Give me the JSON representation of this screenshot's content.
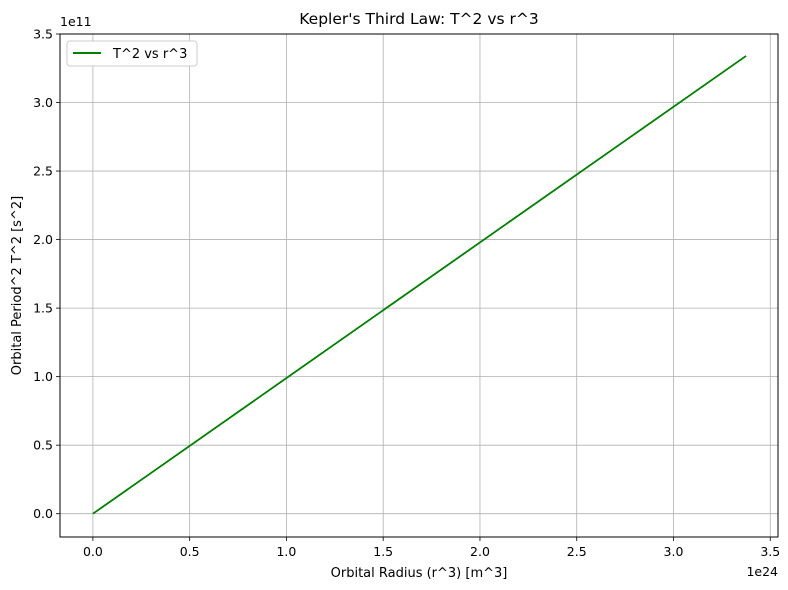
{
  "chart_data": {
    "type": "line",
    "title": "Kepler's Third Law: T^2 vs r^3",
    "xlabel": "Orbital Radius (r^3) [m^3]",
    "ylabel": "Orbital Period^2 T^2 [s^2]",
    "x_offset_text": "1e24",
    "y_offset_text": "1e11",
    "x_ticks": [
      "0.0",
      "0.5",
      "1.0",
      "1.5",
      "2.0",
      "2.5",
      "3.0",
      "3.5"
    ],
    "y_ticks": [
      "0.0",
      "0.5",
      "1.0",
      "1.5",
      "2.0",
      "2.5",
      "3.0",
      "3.5"
    ],
    "x_scale": 1e+24,
    "y_scale": 100000000000.0,
    "xlim": [
      -0.17,
      3.54
    ],
    "ylim": [
      -0.17,
      3.5
    ],
    "grid": true,
    "legend_position": "top-left",
    "series": [
      {
        "name": "T^2 vs r^3",
        "color": "#008000",
        "x": [
          0.0,
          3.375
        ],
        "y": [
          0.0,
          3.34
        ]
      }
    ]
  }
}
